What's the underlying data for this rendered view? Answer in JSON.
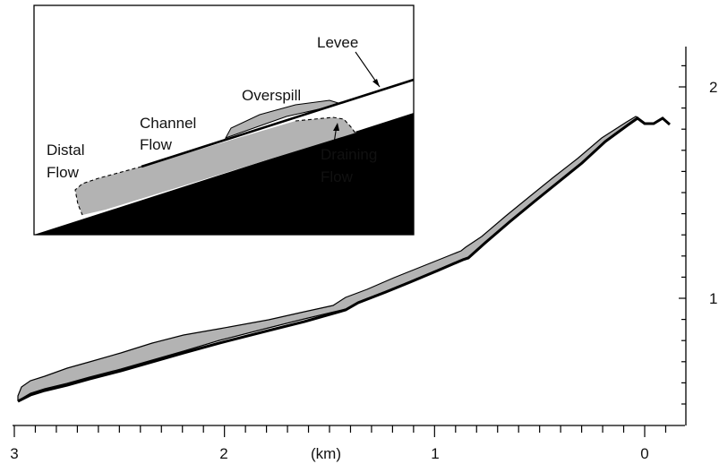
{
  "x_axis": {
    "unit_label": "(km)",
    "ticks": [
      {
        "value": "3",
        "km": 3
      },
      {
        "value": "2",
        "km": 2
      },
      {
        "value": "1",
        "km": 1
      },
      {
        "value": "0",
        "km": 0
      }
    ]
  },
  "y_axis": {
    "ticks": [
      {
        "value": "2"
      },
      {
        "value": "1"
      }
    ]
  },
  "inset": {
    "labels": {
      "levee": "Levee",
      "overspill": "Overspill",
      "channel_flow_1": "Channel",
      "channel_flow_2": "Flow",
      "distal_flow_1": "Distal",
      "distal_flow_2": "Flow",
      "draining_flow_1": "Draining",
      "draining_flow_2": "Flow"
    }
  },
  "colors": {
    "flow_fill": "#b3b3b3",
    "ground": "#000000",
    "line": "#000000"
  }
}
